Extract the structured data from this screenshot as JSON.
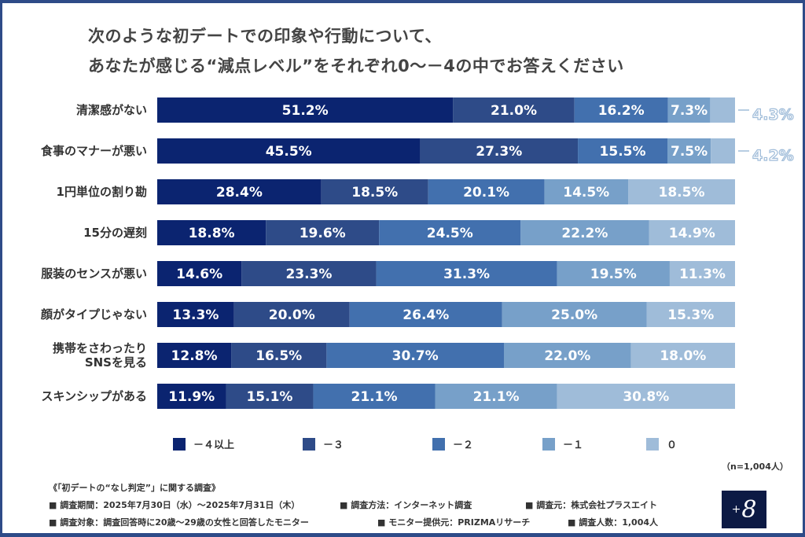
{
  "title": [
    "次のような初デートでの印象や行動について、",
    "あなたが感じる“減点レベル”をそれぞれ0〜－4の中でお答えください"
  ],
  "chart_data": {
    "type": "bar",
    "orientation": "horizontal",
    "stacked": true,
    "categories": [
      "清潔感がない",
      "食事のマナーが悪い",
      "1円単位の割り勘",
      "15分の遅刻",
      "服装のセンスが悪い",
      "顔がタイプじゃない",
      "携帯をさわったり\nSNSを見る",
      "スキンシップがある"
    ],
    "series": [
      {
        "name": "－４以上",
        "color": "#0b2470",
        "values": [
          51.2,
          45.5,
          28.4,
          18.8,
          14.6,
          13.3,
          12.8,
          11.9
        ]
      },
      {
        "name": "－３",
        "color": "#2e4b88",
        "values": [
          21.0,
          27.3,
          18.5,
          19.6,
          23.3,
          20.0,
          16.5,
          15.1
        ]
      },
      {
        "name": "－２",
        "color": "#4270ae",
        "values": [
          16.2,
          15.5,
          20.1,
          24.5,
          31.3,
          26.4,
          30.7,
          21.1
        ]
      },
      {
        "name": "－１",
        "color": "#77a0c9",
        "values": [
          7.3,
          7.5,
          14.5,
          22.2,
          19.5,
          25.0,
          22.0,
          21.1
        ]
      },
      {
        "name": "０",
        "color": "#9fbcd9",
        "values": [
          4.3,
          4.2,
          18.5,
          14.9,
          11.3,
          15.3,
          18.0,
          30.8
        ]
      }
    ],
    "unit": "%",
    "legend": "bottom"
  },
  "sample": "（n=1,004人）",
  "footer": {
    "heading": "《「初デートの“なし判定”」に関する調査》",
    "line1": [
      "■ 調査期間：2025年7月30日（水）～2025年7月31日（木）",
      "■ 調査方法：インターネット調査",
      "■ 調査元：株式会社プラスエイト"
    ],
    "line2": [
      "■ 調査対象：調査回答時に20歳～29歳の女性と回答したモニター",
      "■ モニター提供元：PRIZMAリサーチ",
      "■ 調査人数：1,004人"
    ]
  },
  "logo": {
    "plus": "+",
    "eight": "8"
  }
}
